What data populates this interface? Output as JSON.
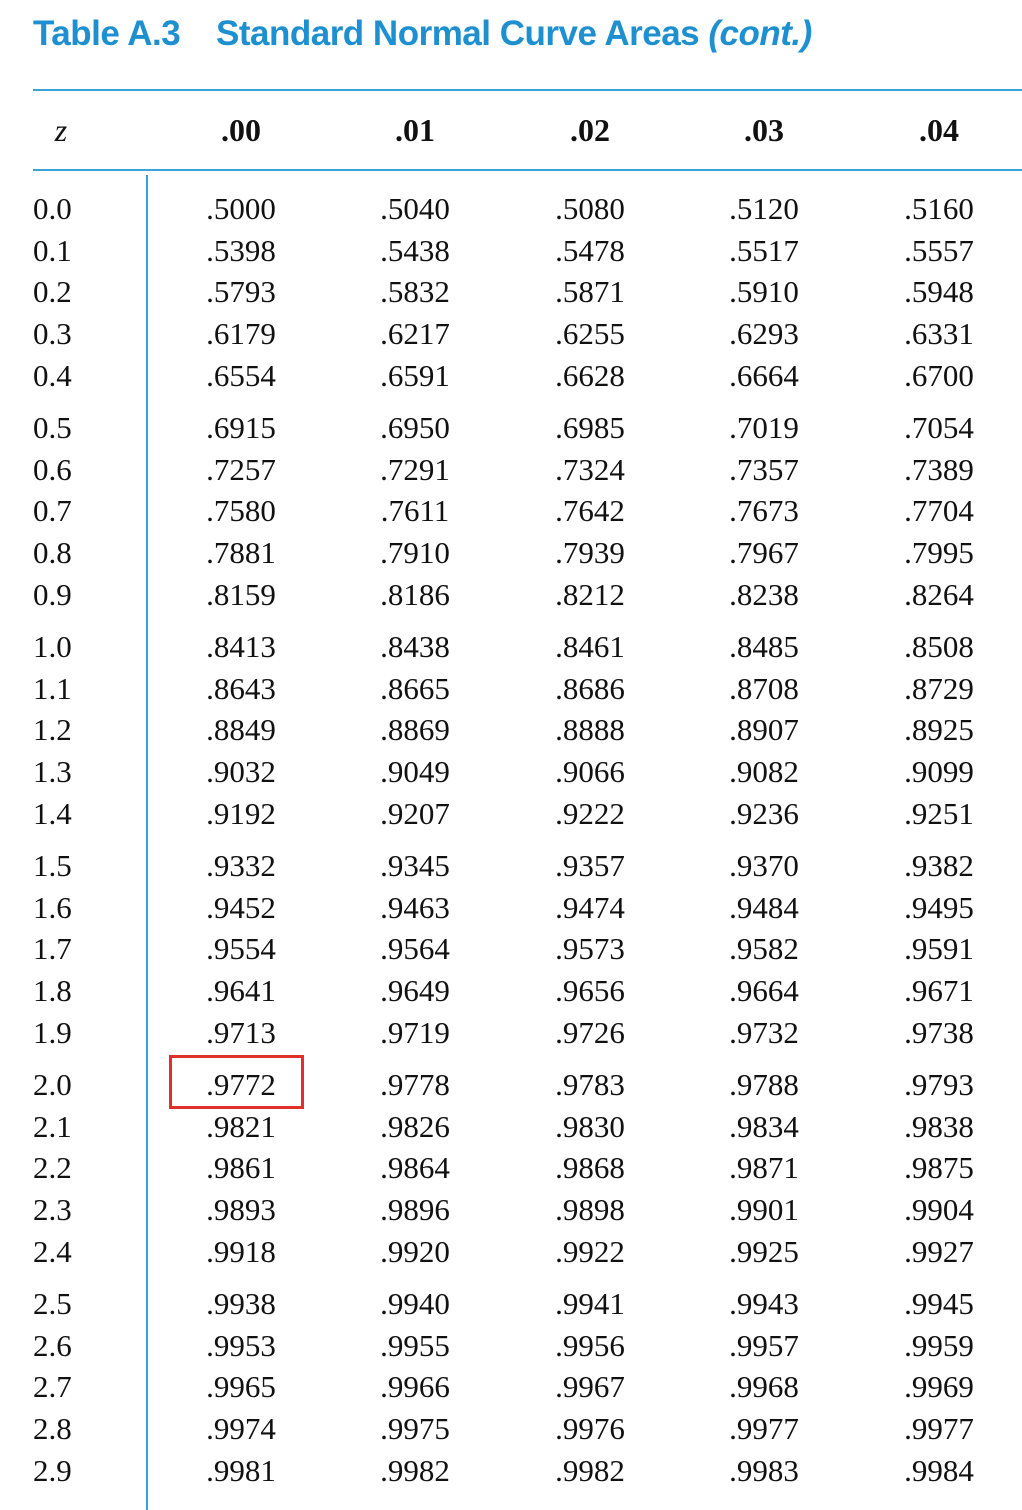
{
  "title": {
    "label": "Table A.3",
    "name": "Standard Normal Curve Areas",
    "cont": "(cont.)"
  },
  "header": {
    "z": "z",
    "columns": [
      ".00",
      ".01",
      ".02",
      ".03",
      ".04"
    ]
  },
  "rows": [
    {
      "z": "0.0",
      "v": [
        ".5000",
        ".5040",
        ".5080",
        ".5120",
        ".5160"
      ]
    },
    {
      "z": "0.1",
      "v": [
        ".5398",
        ".5438",
        ".5478",
        ".5517",
        ".5557"
      ]
    },
    {
      "z": "0.2",
      "v": [
        ".5793",
        ".5832",
        ".5871",
        ".5910",
        ".5948"
      ]
    },
    {
      "z": "0.3",
      "v": [
        ".6179",
        ".6217",
        ".6255",
        ".6293",
        ".6331"
      ]
    },
    {
      "z": "0.4",
      "v": [
        ".6554",
        ".6591",
        ".6628",
        ".6664",
        ".6700"
      ]
    },
    {
      "z": "0.5",
      "v": [
        ".6915",
        ".6950",
        ".6985",
        ".7019",
        ".7054"
      ]
    },
    {
      "z": "0.6",
      "v": [
        ".7257",
        ".7291",
        ".7324",
        ".7357",
        ".7389"
      ]
    },
    {
      "z": "0.7",
      "v": [
        ".7580",
        ".7611",
        ".7642",
        ".7673",
        ".7704"
      ]
    },
    {
      "z": "0.8",
      "v": [
        ".7881",
        ".7910",
        ".7939",
        ".7967",
        ".7995"
      ]
    },
    {
      "z": "0.9",
      "v": [
        ".8159",
        ".8186",
        ".8212",
        ".8238",
        ".8264"
      ]
    },
    {
      "z": "1.0",
      "v": [
        ".8413",
        ".8438",
        ".8461",
        ".8485",
        ".8508"
      ]
    },
    {
      "z": "1.1",
      "v": [
        ".8643",
        ".8665",
        ".8686",
        ".8708",
        ".8729"
      ]
    },
    {
      "z": "1.2",
      "v": [
        ".8849",
        ".8869",
        ".8888",
        ".8907",
        ".8925"
      ]
    },
    {
      "z": "1.3",
      "v": [
        ".9032",
        ".9049",
        ".9066",
        ".9082",
        ".9099"
      ]
    },
    {
      "z": "1.4",
      "v": [
        ".9192",
        ".9207",
        ".9222",
        ".9236",
        ".9251"
      ]
    },
    {
      "z": "1.5",
      "v": [
        ".9332",
        ".9345",
        ".9357",
        ".9370",
        ".9382"
      ]
    },
    {
      "z": "1.6",
      "v": [
        ".9452",
        ".9463",
        ".9474",
        ".9484",
        ".9495"
      ]
    },
    {
      "z": "1.7",
      "v": [
        ".9554",
        ".9564",
        ".9573",
        ".9582",
        ".9591"
      ]
    },
    {
      "z": "1.8",
      "v": [
        ".9641",
        ".9649",
        ".9656",
        ".9664",
        ".9671"
      ]
    },
    {
      "z": "1.9",
      "v": [
        ".9713",
        ".9719",
        ".9726",
        ".9732",
        ".9738"
      ]
    },
    {
      "z": "2.0",
      "v": [
        ".9772",
        ".9778",
        ".9783",
        ".9788",
        ".9793"
      ]
    },
    {
      "z": "2.1",
      "v": [
        ".9821",
        ".9826",
        ".9830",
        ".9834",
        ".9838"
      ]
    },
    {
      "z": "2.2",
      "v": [
        ".9861",
        ".9864",
        ".9868",
        ".9871",
        ".9875"
      ]
    },
    {
      "z": "2.3",
      "v": [
        ".9893",
        ".9896",
        ".9898",
        ".9901",
        ".9904"
      ]
    },
    {
      "z": "2.4",
      "v": [
        ".9918",
        ".9920",
        ".9922",
        ".9925",
        ".9927"
      ]
    },
    {
      "z": "2.5",
      "v": [
        ".9938",
        ".9940",
        ".9941",
        ".9943",
        ".9945"
      ]
    },
    {
      "z": "2.6",
      "v": [
        ".9953",
        ".9955",
        ".9956",
        ".9957",
        ".9959"
      ]
    },
    {
      "z": "2.7",
      "v": [
        ".9965",
        ".9966",
        ".9967",
        ".9968",
        ".9969"
      ]
    },
    {
      "z": "2.8",
      "v": [
        ".9974",
        ".9975",
        ".9976",
        ".9977",
        ".9977"
      ]
    },
    {
      "z": "2.9",
      "v": [
        ".9981",
        ".9982",
        ".9982",
        ".9983",
        ".9984"
      ]
    }
  ],
  "highlight": {
    "row": "2.0",
    "column": ".00",
    "value": ".9772",
    "color": "#e0302a"
  },
  "colors": {
    "accent": "#1e8fcf",
    "rule": "#3ba3d9",
    "text": "#111111"
  }
}
